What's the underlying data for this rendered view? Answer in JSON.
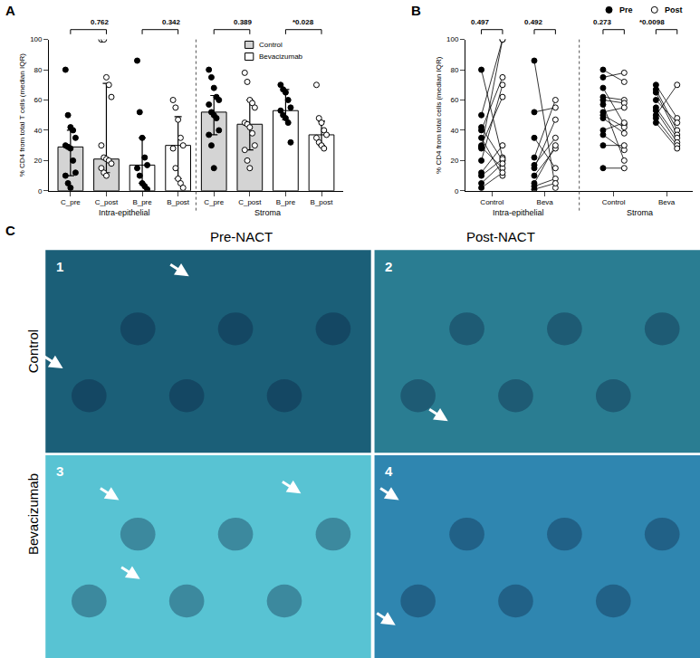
{
  "panel_labels": [
    "A",
    "B",
    "C"
  ],
  "chart_data": [
    {
      "type": "bar",
      "y_label": "% CD4 from total T cells (median IQR)",
      "categories": [
        "C_pre",
        "C_post",
        "B_pre",
        "B_post",
        "C_pre",
        "C_post",
        "B_pre",
        "B_post"
      ],
      "values": [
        29,
        21,
        17,
        30,
        52,
        44,
        53,
        37
      ],
      "error_low": [
        10,
        12,
        5,
        8,
        37,
        27,
        47,
        30
      ],
      "error_high": [
        40,
        71,
        35,
        49,
        63,
        60,
        67,
        46
      ],
      "colors": [
        "#d4d4d4",
        "#d4d4d4",
        "#ffffff",
        "#ffffff",
        "#d4d4d4",
        "#d4d4d4",
        "#ffffff",
        "#ffffff"
      ],
      "points": [
        {
          "marker": "filled",
          "values": [
            80,
            50,
            42,
            40,
            35,
            30,
            29,
            28,
            20,
            12,
            10,
            5,
            2
          ]
        },
        {
          "marker": "open",
          "values": [
            100,
            100,
            75,
            70,
            62,
            30,
            22,
            21,
            20,
            18,
            15,
            12,
            10
          ]
        },
        {
          "marker": "filled",
          "values": [
            86,
            52,
            35,
            22,
            17,
            15,
            10,
            5,
            3,
            1
          ]
        },
        {
          "marker": "open",
          "values": [
            60,
            55,
            47,
            35,
            30,
            28,
            15,
            8,
            5,
            2
          ]
        },
        {
          "marker": "filled",
          "values": [
            80,
            75,
            68,
            62,
            60,
            57,
            52,
            50,
            48,
            40,
            37,
            30,
            15
          ]
        },
        {
          "marker": "open",
          "values": [
            78,
            72,
            60,
            58,
            55,
            45,
            44,
            42,
            38,
            30,
            27,
            20,
            15
          ]
        },
        {
          "marker": "filled",
          "values": [
            70,
            67,
            65,
            60,
            55,
            53,
            50,
            48,
            45,
            32
          ]
        },
        {
          "marker": "open",
          "values": [
            70,
            48,
            45,
            40,
            37,
            35,
            32,
            30,
            28
          ]
        }
      ],
      "sections": [
        {
          "label": "Intra-epithelial",
          "from": 0,
          "to": 3
        },
        {
          "label": "Stroma",
          "from": 4,
          "to": 7
        }
      ],
      "comparisons": [
        {
          "from": 0,
          "to": 1,
          "label": "0.762"
        },
        {
          "from": 2,
          "to": 3,
          "label": "0.342"
        },
        {
          "from": 4,
          "to": 5,
          "label": "0.389"
        },
        {
          "from": 6,
          "to": 7,
          "label": "*0.028"
        }
      ],
      "series": [
        {
          "name": "Control",
          "color": "#d4d4d4"
        },
        {
          "name": "Bevacizumab",
          "color": "#ffffff"
        }
      ],
      "legend": "top right",
      "ylim": [
        0,
        100
      ],
      "yticks": [
        0,
        20,
        40,
        60,
        80,
        100
      ]
    },
    {
      "type": "line",
      "y_label": "% CD4 from total cells (median IQR)",
      "groups": [
        {
          "label": "Control",
          "section": "Intra-epithelial",
          "pairs": [
            [
              80,
              22
            ],
            [
              50,
              100
            ],
            [
              42,
              20
            ],
            [
              40,
              75
            ],
            [
              35,
              10
            ],
            [
              30,
              62
            ],
            [
              29,
              15
            ],
            [
              28,
              100
            ],
            [
              20,
              70
            ],
            [
              12,
              30
            ],
            [
              10,
              21
            ],
            [
              5,
              18
            ],
            [
              2,
              12
            ]
          ]
        },
        {
          "label": "Beva",
          "section": "Intra-epithelial",
          "pairs": [
            [
              86,
              2
            ],
            [
              52,
              55
            ],
            [
              35,
              15
            ],
            [
              22,
              60
            ],
            [
              17,
              35
            ],
            [
              15,
              47
            ],
            [
              10,
              28
            ],
            [
              5,
              30
            ],
            [
              3,
              8
            ],
            [
              1,
              5
            ]
          ]
        },
        {
          "label": "Control",
          "section": "Stroma",
          "pairs": [
            [
              80,
              72
            ],
            [
              75,
              78
            ],
            [
              68,
              44
            ],
            [
              62,
              60
            ],
            [
              60,
              58
            ],
            [
              57,
              20
            ],
            [
              52,
              55
            ],
            [
              50,
              42
            ],
            [
              48,
              38
            ],
            [
              40,
              45
            ],
            [
              37,
              27
            ],
            [
              30,
              30
            ],
            [
              15,
              15
            ]
          ]
        },
        {
          "label": "Beva",
          "section": "Stroma",
          "pairs": [
            [
              70,
              48
            ],
            [
              67,
              40
            ],
            [
              65,
              37
            ],
            [
              60,
              45
            ],
            [
              55,
              35
            ],
            [
              53,
              32
            ],
            [
              50,
              70
            ],
            [
              48,
              30
            ],
            [
              45,
              28
            ]
          ]
        }
      ],
      "series": [
        {
          "name": "Pre",
          "marker": "filled"
        },
        {
          "name": "Post",
          "marker": "open"
        }
      ],
      "comparisons": [
        {
          "group": 0,
          "label": "0.497"
        },
        {
          "group": 1,
          "label": "0.492"
        },
        {
          "group": 2,
          "label": "0.273"
        },
        {
          "group": 3,
          "label": "*0.0098"
        }
      ],
      "legend": "top right",
      "ylim": [
        0,
        100
      ],
      "yticks": [
        0,
        20,
        40,
        60,
        80,
        100
      ]
    }
  ],
  "image_panel": {
    "columns": [
      "Pre-NACT",
      "Post-NACT"
    ],
    "rows": [
      "Control",
      "Bevacizumab"
    ],
    "images": [
      {
        "number": "1",
        "row": 0,
        "column": 0,
        "color": "#1b5f78"
      },
      {
        "number": "2",
        "row": 0,
        "column": 1,
        "color": "#2a7d92"
      },
      {
        "number": "3",
        "row": 1,
        "column": 0,
        "color": "#58c3d3"
      },
      {
        "number": "4",
        "row": 1,
        "column": 1,
        "color": "#2f86b0"
      }
    ]
  }
}
